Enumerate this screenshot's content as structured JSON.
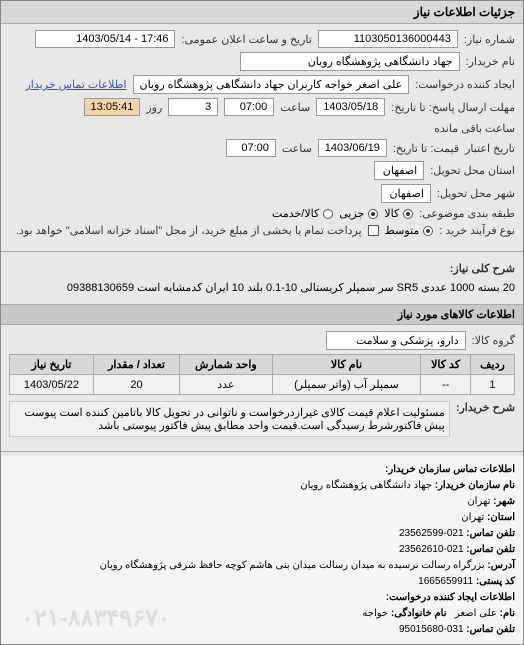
{
  "titlebar": "جزئیات اطلاعات نیاز",
  "header": {
    "request_no_label": "شماره نیاز:",
    "request_no": "1103050136000443",
    "announce_label": "تاریخ و ساعت اعلان عمومی:",
    "announce_value": "17:46 - 1403/05/14",
    "buyer_name_label": "نام خریدار:",
    "buyer_name": "جهاد دانشگاهی پژوهشگاه رویان",
    "creator_label": "ایجاد کننده درخواست:",
    "creator": "علی اصغر خواجه کاربران جهاد دانشگاهی پژوهشگاه رویان",
    "contact_link": "اطلاعات تماس خریدار",
    "deadline_label": "مهلت ارسال پاسخ: تا تاریخ:",
    "deadline_date": "1403/05/18",
    "deadline_time_label": "ساعت",
    "deadline_time": "07:00",
    "deadline_days": "3",
    "days_label": "روز",
    "remain_value": "13:05:41",
    "remain_label": "ساعت باقی مانده",
    "price_deadline_label": "قیمت: تا تاریخ:",
    "price_date": "1403/06/19",
    "price_time": "07:00",
    "delivery_state_label": "استان محل تحویل:",
    "delivery_state": "اصفهان",
    "delivery_city_label": "شهر محل تحویل:",
    "delivery_city": "اصفهان",
    "package_label": "طبقه بندی موضوعی:",
    "pkg_opts": {
      "goods": "کالا",
      "partial": "جزیی",
      "cash": "کالا/خدمت"
    },
    "buy_type_label": "نوع فرآیند خرید :",
    "buy_opts": {
      "medium": "متوسط"
    },
    "credit_label": "تاریخ اعتبار",
    "extra_row": "پرداخت تمام یا بخشی از مبلغ خرید، از محل \"اسناد خزانه اسلامی\" خواهد بود."
  },
  "desc": {
    "label": "شرح کلی نیاز:",
    "text": "20 بسته 1000 عددی SR5 سر سمپلر کریستالی 10-0.1 بلند 10 ایران کدمشابه است 09388130659"
  },
  "goods_header": "اطلاعات کالاهای مورد نیاز",
  "group_label": "گروه کالا:",
  "group_value": "دارو، پزشکی و سلامت",
  "table": {
    "cols": [
      "ردیف",
      "کد کالا",
      "نام کالا",
      "واحد شمارش",
      "تعداد / مقدار",
      "تاریخ نیاز"
    ],
    "rows": [
      [
        "1",
        "--",
        "سمپلر آب (واتر سمپلر)",
        "عدد",
        "20",
        "1403/05/22"
      ]
    ]
  },
  "expl_label": "شرح خریدار:",
  "expl_text": "مسئولیت اعلام قیمت کالای غیرازدرخواست و ناتوانی در تحویل کالا باتامین کننده است پیوست پیش فاکتورشرط رسیدگی است.قیمت واحد مطابق پیش فاکتور پیوستی باشد",
  "footer": {
    "header": "اطلاعات تماس سازمان خریدار:",
    "org_label": "نام سازمان خریدار:",
    "org": "جهاد دانشگاهی پژوهشگاه رویان",
    "city_label": "شهر:",
    "city": "تهران",
    "prov_label": "استان:",
    "prov": "تهران",
    "tel_label": "تلفن تماس:",
    "tel": "021-23562599",
    "fax_label": "تلفن تماس:",
    "fax": "021-23562610",
    "addr_label": "آدرس:",
    "addr": "بزرگراه رسالت نرسیده به میدان رسالت میدان بنی هاشم کوچه حافظ شرقی پژوهشگاه رویان",
    "post_label": "کد پستی:",
    "post": "1665659911",
    "creator_hdr": "اطلاعات ایجاد کننده درخواست:",
    "name_label": "نام:",
    "fname": "علی اصغر",
    "lname_label": "نام خانوادگی:",
    "lname": "خواجه",
    "ctel_label": "تلفن تماس:",
    "ctel": "031-95015680"
  },
  "watermark": "۰۲۱-۸۸۳۴۹۶۷۰"
}
